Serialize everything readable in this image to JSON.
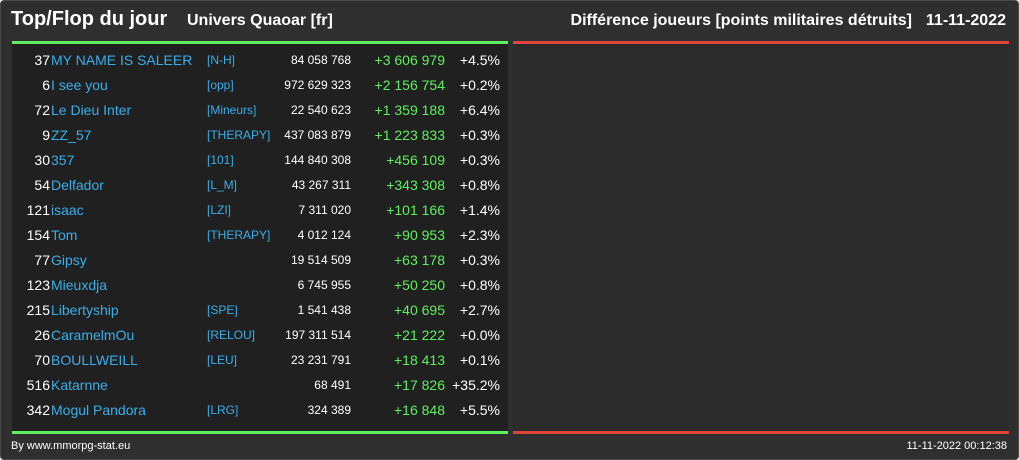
{
  "header": {
    "title": "Top/Flop du jour",
    "universe": "Univers Quaoar [fr]",
    "metric": "Différence joueurs [points militaires détruits]",
    "date": "11-11-2022"
  },
  "colors": {
    "background": "#2f2f2f",
    "top_panel": "#202020",
    "flop_panel": "#2b2b2b",
    "top_rule": "#5ef05e",
    "flop_rule": "#e0443c",
    "link": "#3aaee8",
    "gain": "#5ef05e"
  },
  "top_rows": [
    {
      "rank": "37",
      "player": "MY NAME IS SALEER",
      "alliance": "[N-H]",
      "points": "84 058 768",
      "diff": "+3 606 979",
      "pct": "+4.5%"
    },
    {
      "rank": "6",
      "player": "I see you",
      "alliance": "[opp]",
      "points": "972 629 323",
      "diff": "+2 156 754",
      "pct": "+0.2%"
    },
    {
      "rank": "72",
      "player": "Le Dieu Inter",
      "alliance": "[Mineurs]",
      "points": "22 540 623",
      "diff": "+1 359 188",
      "pct": "+6.4%"
    },
    {
      "rank": "9",
      "player": "ZZ_57",
      "alliance": "[THERAPY]",
      "points": "437 083 879",
      "diff": "+1 223 833",
      "pct": "+0.3%"
    },
    {
      "rank": "30",
      "player": "357",
      "alliance": "[101]",
      "points": "144 840 308",
      "diff": "+456 109",
      "pct": "+0.3%"
    },
    {
      "rank": "54",
      "player": "Delfador",
      "alliance": "[L_M]",
      "points": "43 267 311",
      "diff": "+343 308",
      "pct": "+0.8%"
    },
    {
      "rank": "121",
      "player": "isaac",
      "alliance": "[LZI]",
      "points": "7 311 020",
      "diff": "+101 166",
      "pct": "+1.4%"
    },
    {
      "rank": "154",
      "player": "Tom",
      "alliance": "[THERAPY]",
      "points": "4 012 124",
      "diff": "+90 953",
      "pct": "+2.3%"
    },
    {
      "rank": "77",
      "player": "Gipsy",
      "alliance": "",
      "points": "19 514 509",
      "diff": "+63 178",
      "pct": "+0.3%"
    },
    {
      "rank": "123",
      "player": "Mieuxdja",
      "alliance": "",
      "points": "6 745 955",
      "diff": "+50 250",
      "pct": "+0.8%"
    },
    {
      "rank": "215",
      "player": "Libertyship",
      "alliance": "[SPE]",
      "points": "1 541 438",
      "diff": "+40 695",
      "pct": "+2.7%"
    },
    {
      "rank": "26",
      "player": "CaramelmOu",
      "alliance": "[RELOU]",
      "points": "197 311 514",
      "diff": "+21 222",
      "pct": "+0.0%"
    },
    {
      "rank": "70",
      "player": "BOULLWEILL",
      "alliance": "[LEU]",
      "points": "23 231 791",
      "diff": "+18 413",
      "pct": "+0.1%"
    },
    {
      "rank": "516",
      "player": "Katarnne",
      "alliance": "",
      "points": "68 491",
      "diff": "+17 826",
      "pct": "+35.2%"
    },
    {
      "rank": "342",
      "player": "Mogul Pandora",
      "alliance": "[LRG]",
      "points": "324 389",
      "diff": "+16 848",
      "pct": "+5.5%"
    }
  ],
  "footer": {
    "credit": "By www.mmorpg-stat.eu",
    "timestamp": "11-11-2022 00:12:38"
  }
}
